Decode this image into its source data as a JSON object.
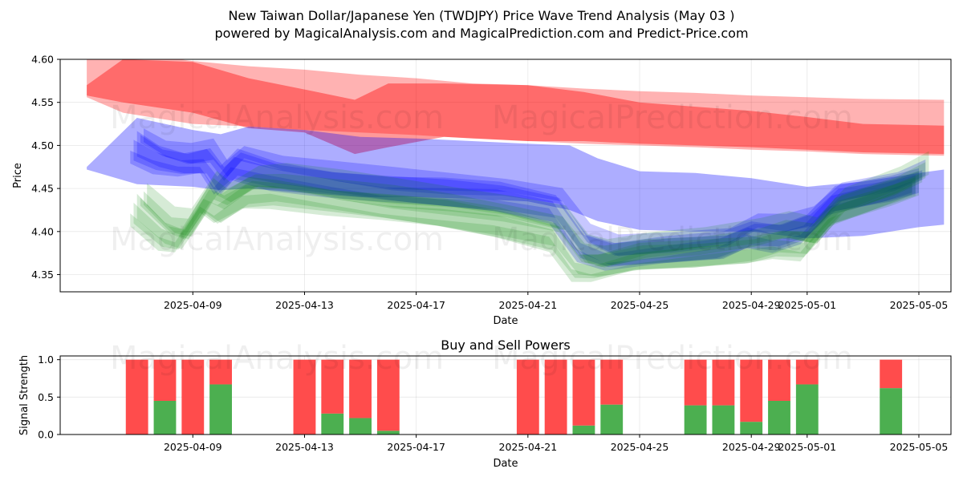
{
  "title_line1": "New Taiwan Dollar/Japanese Yen (TWDJPY) Price Wave Trend Analysis (May 03 )",
  "title_line2": "powered by MagicalAnalysis.com and MagicalPrediction.com and Predict-Price.com",
  "watermarks": [
    "MagicalAnalysis.com",
    "MagicalPrediction.com"
  ],
  "colors": {
    "red": "#ff0000",
    "blue": "#0000ff",
    "green": "#008000",
    "buy": "#4caf50",
    "sell": "#ff4c4c"
  },
  "chart_data": [
    {
      "type": "area",
      "title": "",
      "xlabel": "Date",
      "ylabel": "Price",
      "xlim": [
        "2025-04-05",
        "2025-05-06"
      ],
      "ylim": [
        4.33,
        4.6
      ],
      "x_ticks": [
        "2025-04-09",
        "2025-04-13",
        "2025-04-17",
        "2025-04-21",
        "2025-04-25",
        "2025-04-29",
        "2025-05-01",
        "2025-05-05"
      ],
      "y_ticks": [
        "4.35",
        "4.40",
        "4.45",
        "4.50",
        "4.55",
        "4.60"
      ],
      "series": [
        {
          "name": "red-outer-band",
          "color": "red",
          "opacity": 0.3,
          "x": [
            5.2,
            6.5,
            9,
            11,
            13,
            15,
            17,
            19,
            21,
            23,
            25,
            27,
            29,
            31,
            33,
            35.9
          ],
          "upper": [
            4.6,
            4.608,
            4.598,
            4.592,
            4.588,
            4.582,
            4.578,
            4.572,
            4.57,
            4.566,
            4.563,
            4.561,
            4.558,
            4.556,
            4.554,
            4.553
          ],
          "lower": [
            4.556,
            4.538,
            4.525,
            4.522,
            4.518,
            4.515,
            4.512,
            4.508,
            4.505,
            4.502,
            4.5,
            4.498,
            4.495,
            4.493,
            4.49,
            4.488
          ]
        },
        {
          "name": "red-inner-band",
          "color": "red",
          "opacity": 0.4,
          "x": [
            5.2,
            6.5,
            9,
            11,
            13,
            14.8,
            16,
            18,
            21,
            23,
            25,
            27,
            29,
            31,
            33,
            35.9
          ],
          "upper": [
            4.57,
            4.6,
            4.597,
            4.578,
            4.565,
            4.553,
            4.572,
            4.572,
            4.57,
            4.562,
            4.55,
            4.545,
            4.54,
            4.533,
            4.525,
            4.523
          ],
          "lower": [
            4.558,
            4.55,
            4.538,
            4.52,
            4.515,
            4.49,
            4.498,
            4.51,
            4.505,
            4.505,
            4.502,
            4.5,
            4.498,
            4.495,
            4.492,
            4.49
          ]
        },
        {
          "name": "blue-band",
          "color": "blue",
          "opacity": 0.32,
          "x": [
            5.2,
            7,
            9,
            10,
            11,
            13,
            15,
            17,
            19,
            21,
            22.5,
            23.5,
            25,
            27,
            29,
            31,
            33,
            35,
            35.9
          ],
          "upper": [
            4.475,
            4.532,
            4.518,
            4.513,
            4.522,
            4.518,
            4.51,
            4.508,
            4.505,
            4.502,
            4.5,
            4.485,
            4.47,
            4.468,
            4.462,
            4.452,
            4.458,
            4.468,
            4.472
          ],
          "lower": [
            4.472,
            4.455,
            4.452,
            4.448,
            4.45,
            4.445,
            4.44,
            4.44,
            4.438,
            4.435,
            4.425,
            4.412,
            4.402,
            4.4,
            4.4,
            4.392,
            4.395,
            4.405,
            4.408
          ]
        },
        {
          "name": "blue-paths",
          "color": "blue",
          "opacity": 0.22,
          "count": 5,
          "x": [
            7,
            7.8,
            8.7,
            9.5,
            10,
            10.6,
            12,
            14,
            16,
            18,
            20,
            22,
            23,
            24,
            26,
            28,
            29,
            30,
            31,
            32,
            34,
            35
          ],
          "y": [
            4.5,
            4.486,
            4.48,
            4.483,
            4.46,
            4.48,
            4.468,
            4.458,
            4.45,
            4.446,
            4.442,
            4.43,
            4.385,
            4.372,
            4.378,
            4.385,
            4.4,
            4.396,
            4.405,
            4.436,
            4.45,
            4.462
          ]
        },
        {
          "name": "green-paths",
          "color": "green",
          "opacity": 0.16,
          "count": 6,
          "x": [
            7,
            8,
            8.6,
            9.5,
            10,
            11,
            12,
            14,
            16,
            18,
            20,
            22,
            22.8,
            23.5,
            25,
            27,
            29,
            30,
            31,
            32,
            34,
            35
          ],
          "y": [
            4.43,
            4.4,
            4.395,
            4.44,
            4.43,
            4.45,
            4.45,
            4.44,
            4.432,
            4.425,
            4.415,
            4.4,
            4.365,
            4.362,
            4.373,
            4.378,
            4.385,
            4.392,
            4.388,
            4.425,
            4.448,
            4.462
          ]
        }
      ]
    },
    {
      "type": "bar",
      "title": "Buy and Sell Powers",
      "xlabel": "Date",
      "ylabel": "Signal Strength",
      "ylim": [
        0,
        1.05
      ],
      "x_ticks": [
        "2025-04-09",
        "2025-04-13",
        "2025-04-17",
        "2025-04-21",
        "2025-04-25",
        "2025-04-29",
        "2025-05-01",
        "2025-05-05"
      ],
      "y_ticks": [
        "0.0",
        "0.5",
        "1.0"
      ],
      "dates": [
        "2025-04-07",
        "2025-04-08",
        "2025-04-09",
        "2025-04-10",
        "2025-04-13",
        "2025-04-14",
        "2025-04-15",
        "2025-04-16",
        "2025-04-21",
        "2025-04-22",
        "2025-04-23",
        "2025-04-24",
        "2025-04-27",
        "2025-04-28",
        "2025-04-29",
        "2025-04-30",
        "2025-05-01",
        "2025-05-04"
      ],
      "buy": [
        0.0,
        0.45,
        0.0,
        0.67,
        0.0,
        0.28,
        0.22,
        0.05,
        0.0,
        0.0,
        0.12,
        0.4,
        0.39,
        0.39,
        0.17,
        0.45,
        0.67,
        0.62
      ],
      "sell": [
        1.0,
        0.55,
        1.0,
        0.33,
        1.0,
        0.72,
        0.78,
        0.95,
        1.0,
        1.0,
        0.88,
        0.6,
        0.61,
        0.61,
        0.83,
        0.55,
        0.33,
        0.38
      ]
    }
  ]
}
